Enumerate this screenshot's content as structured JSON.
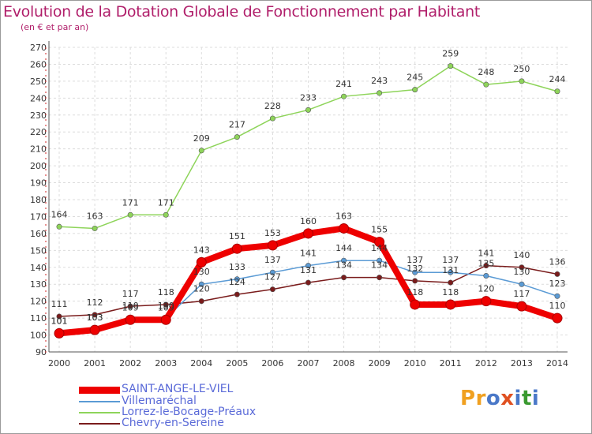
{
  "title": "Evolution de la Dotation Globale de Fonctionnement par Habitant",
  "subtitle": "(en € et par an)",
  "logo": {
    "text": "Proxiti",
    "colors": [
      "#f0a020",
      "#4a78c8",
      "#e05020",
      "#3a9a30"
    ]
  },
  "chart_data": {
    "type": "line",
    "x": [
      "2000",
      "2001",
      "2002",
      "2003",
      "2004",
      "2005",
      "2006",
      "2007",
      "2008",
      "2009",
      "2010",
      "2011",
      "2012",
      "2013",
      "2014"
    ],
    "ylim": [
      90,
      270
    ],
    "yticks": [
      90,
      100,
      110,
      120,
      130,
      140,
      150,
      160,
      170,
      180,
      190,
      200,
      210,
      220,
      230,
      240,
      250,
      260,
      270
    ],
    "grid": true,
    "legend_position": "bottom-left",
    "series": [
      {
        "name": "SAINT-ANGE-LE-VIEL",
        "color": "#ee0000",
        "values": [
          101,
          103,
          109,
          109,
          143,
          151,
          153,
          160,
          163,
          155,
          118,
          118,
          120,
          117,
          110
        ]
      },
      {
        "name": "Villemaréchal",
        "color": "#5b9bd5",
        "values": [
          101,
          103,
          110,
          110,
          130,
          133,
          137,
          141,
          144,
          144,
          137,
          137,
          135,
          130,
          123
        ]
      },
      {
        "name": "Lorrez-le-Bocage-Préaux",
        "color": "#8ed45a",
        "values": [
          164,
          163,
          171,
          171,
          209,
          217,
          228,
          233,
          241,
          243,
          245,
          259,
          248,
          250,
          244
        ]
      },
      {
        "name": "Chevry-en-Sereine",
        "color": "#7a1c1c",
        "values": [
          111,
          112,
          117,
          118,
          120,
          124,
          127,
          131,
          134,
          134,
          132,
          131,
          141,
          140,
          136
        ]
      }
    ]
  }
}
